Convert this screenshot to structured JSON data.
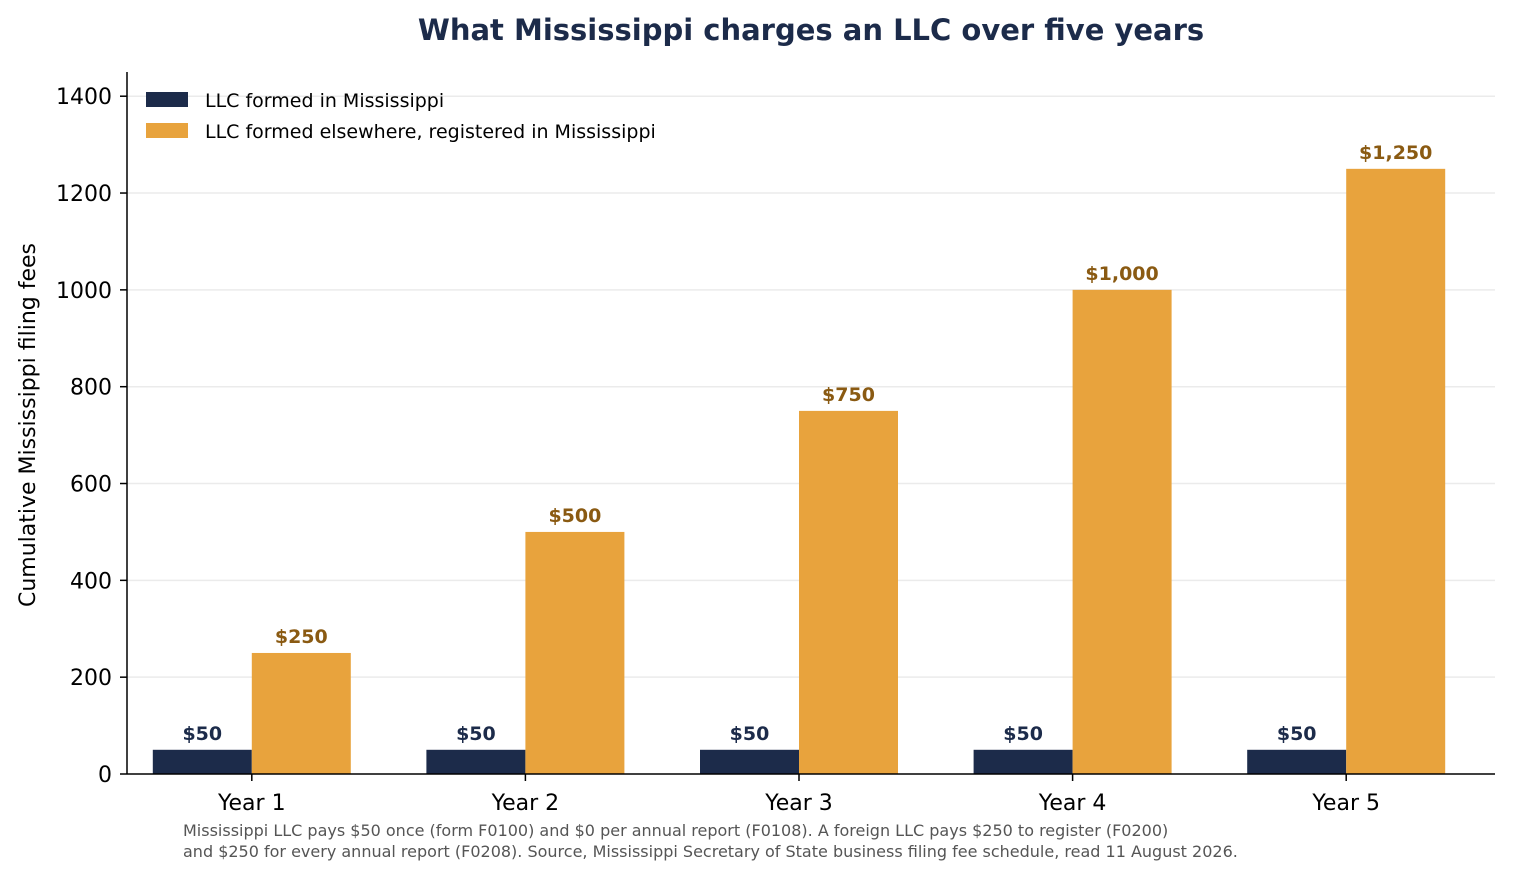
{
  "colors": {
    "title": "#1c2b4a",
    "in_state": "#1c2b4a",
    "foreign": "#e8a33d",
    "foreign_label": "#8a5a12",
    "grid": "#ebebeb",
    "note": "#555555"
  },
  "chart_data": {
    "type": "bar",
    "title": "What Mississippi charges an LLC over five years",
    "xlabel": "",
    "ylabel": "Cumulative Mississippi filing fees",
    "categories": [
      "Year 1",
      "Year 2",
      "Year 3",
      "Year 4",
      "Year 5"
    ],
    "ylim": [
      0,
      1450
    ],
    "yticks": [
      0,
      200,
      400,
      600,
      800,
      1000,
      1200,
      1400
    ],
    "grid": true,
    "legend_placement": "top-left",
    "series": [
      {
        "name": "LLC formed in Mississippi",
        "values": [
          50,
          50,
          50,
          50,
          50
        ],
        "labels": [
          "$50",
          "$50",
          "$50",
          "$50",
          "$50"
        ]
      },
      {
        "name": "LLC formed elsewhere, registered in Mississippi",
        "values": [
          250,
          500,
          750,
          1000,
          1250
        ],
        "labels": [
          "$250",
          "$500",
          "$750",
          "$1,000",
          "$1,250"
        ]
      }
    ]
  },
  "footnote": {
    "line1": "Mississippi LLC pays $50 once (form F0100) and $0 per annual report (F0108). A foreign LLC pays $250 to register (F0200)",
    "line2": "and $250 for every annual report (F0208). Source, Mississippi Secretary of State business filing fee schedule, read 11 August 2026."
  }
}
